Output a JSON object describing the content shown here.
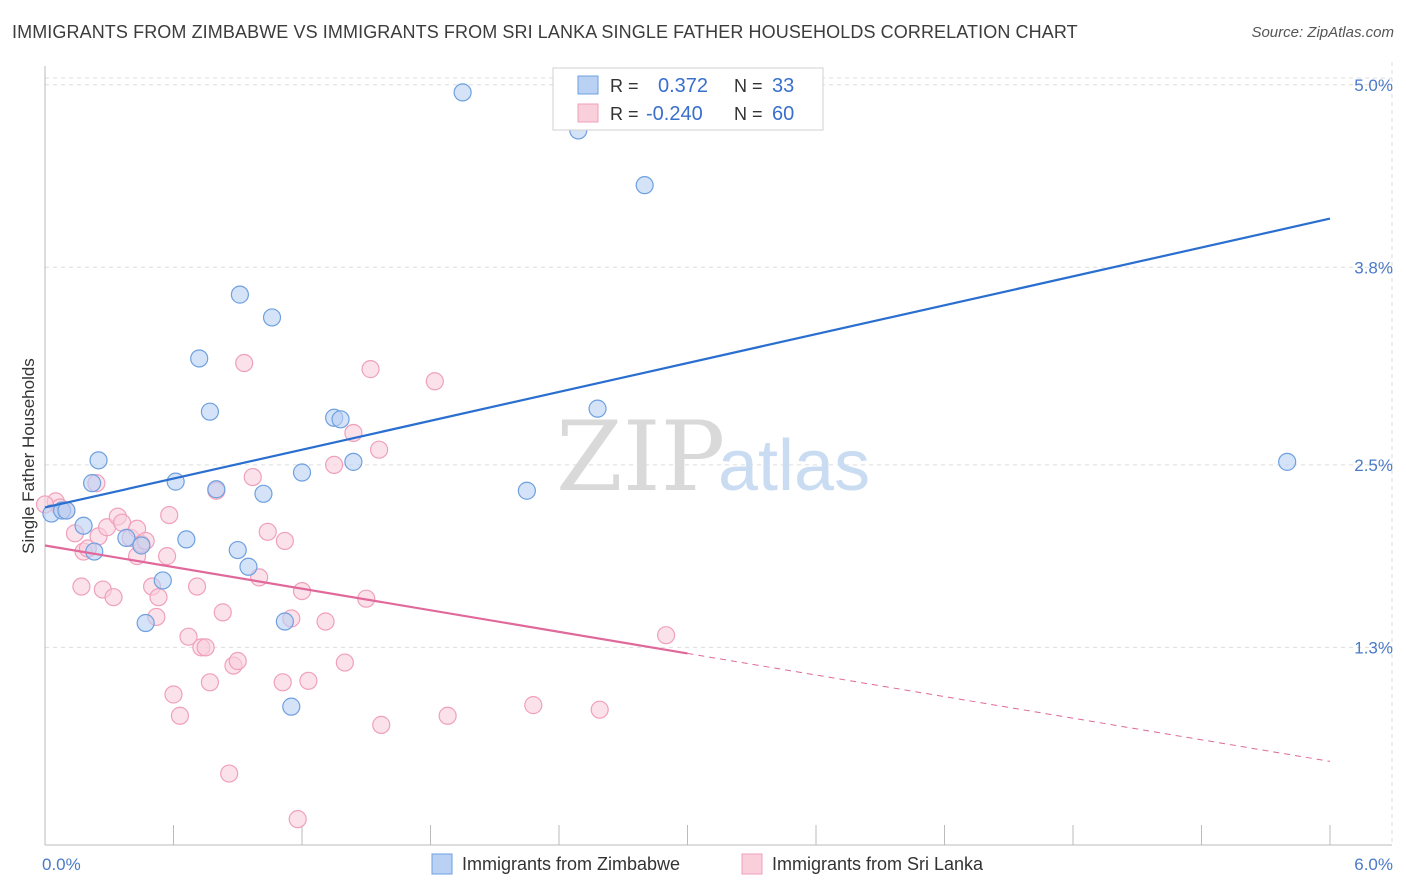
{
  "chart_data": {
    "type": "scatter",
    "title": "IMMIGRANTS FROM ZIMBABWE VS IMMIGRANTS FROM SRI LANKA SINGLE FATHER HOUSEHOLDS CORRELATION CHART",
    "source": "Source: ZipAtlas.com",
    "xlabel": "",
    "ylabel": "Single Father Households",
    "xlim": [
      0,
      6
    ],
    "ylim": [
      0,
      5.15
    ],
    "x_tick_labels": [
      "0.0%",
      "6.0%"
    ],
    "y_ticks": [
      1.3,
      2.5,
      3.8,
      5.0
    ],
    "y_tick_labels": [
      "1.3%",
      "2.5%",
      "3.8%",
      "5.0%"
    ],
    "watermark": {
      "zip": "ZIP",
      "atlas": "atlas"
    },
    "legend_box": {
      "r_label": "R =",
      "n_label": "N =",
      "rows": [
        {
          "r": "0.372",
          "n": "33"
        },
        {
          "r": "-0.240",
          "n": "60"
        }
      ]
    },
    "series": [
      {
        "name": "Immigrants from Zimbabwe",
        "color": "#6ea0e0",
        "fill": "#b9d1f3",
        "line_color": "#2a6fcf",
        "trend": {
          "x0": 0.0,
          "y0": 2.22,
          "x1": 6.0,
          "y1": 4.12
        },
        "points": [
          [
            0.03,
            2.18
          ],
          [
            0.08,
            2.2
          ],
          [
            0.1,
            2.2
          ],
          [
            0.18,
            2.1
          ],
          [
            0.23,
            1.93
          ],
          [
            0.25,
            2.53
          ],
          [
            0.22,
            2.38
          ],
          [
            0.38,
            2.02
          ],
          [
            0.45,
            1.97
          ],
          [
            0.55,
            1.74
          ],
          [
            0.47,
            1.46
          ],
          [
            0.61,
            2.39
          ],
          [
            0.66,
            2.01
          ],
          [
            0.72,
            3.2
          ],
          [
            0.77,
            2.85
          ],
          [
            0.8,
            2.34
          ],
          [
            0.9,
            1.94
          ],
          [
            0.91,
            3.62
          ],
          [
            0.95,
            1.83
          ],
          [
            1.02,
            2.31
          ],
          [
            1.06,
            3.47
          ],
          [
            1.12,
            1.47
          ],
          [
            1.15,
            0.91
          ],
          [
            1.2,
            2.45
          ],
          [
            1.35,
            2.81
          ],
          [
            1.38,
            2.8
          ],
          [
            1.44,
            2.52
          ],
          [
            1.95,
            4.95
          ],
          [
            2.25,
            2.33
          ],
          [
            2.49,
            4.7
          ],
          [
            2.58,
            2.87
          ],
          [
            2.8,
            4.34
          ],
          [
            5.8,
            2.52
          ]
        ]
      },
      {
        "name": "Immigrants from Sri Lanka",
        "color": "#f0a0bb",
        "fill": "#f9cfdc",
        "line_color": "#e0689a",
        "trend": {
          "x0": 0.0,
          "y0": 1.97,
          "x1": 3.0,
          "y1": 1.26
        },
        "trend_dashed": {
          "x0": 3.0,
          "y0": 1.26,
          "x1": 6.0,
          "y1": 0.55
        },
        "points": [
          [
            0.05,
            2.26
          ],
          [
            0.07,
            2.22
          ],
          [
            0.1,
            2.2
          ],
          [
            0.14,
            2.05
          ],
          [
            0.17,
            1.7
          ],
          [
            0.18,
            1.93
          ],
          [
            0.2,
            1.95
          ],
          [
            0.25,
            2.03
          ],
          [
            0.24,
            2.38
          ],
          [
            0.27,
            1.68
          ],
          [
            0.29,
            2.09
          ],
          [
            0.32,
            1.63
          ],
          [
            0.34,
            2.16
          ],
          [
            0.36,
            2.12
          ],
          [
            0.4,
            2.02
          ],
          [
            0.43,
            2.08
          ],
          [
            0.43,
            1.9
          ],
          [
            0.45,
            1.98
          ],
          [
            0.47,
            2.0
          ],
          [
            0.5,
            1.7
          ],
          [
            0.52,
            1.5
          ],
          [
            0.53,
            1.63
          ],
          [
            0.57,
            1.9
          ],
          [
            0.58,
            2.17
          ],
          [
            0.6,
            0.99
          ],
          [
            0.63,
            0.85
          ],
          [
            0.67,
            1.37
          ],
          [
            0.71,
            1.7
          ],
          [
            0.73,
            1.3
          ],
          [
            0.75,
            1.3
          ],
          [
            0.77,
            1.07
          ],
          [
            0.8,
            2.33
          ],
          [
            0.83,
            1.53
          ],
          [
            0.86,
            0.47
          ],
          [
            0.88,
            1.18
          ],
          [
            0.9,
            1.21
          ],
          [
            0.93,
            3.17
          ],
          [
            0.97,
            2.42
          ],
          [
            1.0,
            1.76
          ],
          [
            1.04,
            2.06
          ],
          [
            1.11,
            1.07
          ],
          [
            1.12,
            2.0
          ],
          [
            1.15,
            1.49
          ],
          [
            1.18,
            0.17
          ],
          [
            1.2,
            1.67
          ],
          [
            1.23,
            1.08
          ],
          [
            1.31,
            1.47
          ],
          [
            1.35,
            2.5
          ],
          [
            1.4,
            1.2
          ],
          [
            1.44,
            2.71
          ],
          [
            1.5,
            1.62
          ],
          [
            1.52,
            3.13
          ],
          [
            1.57,
            0.79
          ],
          [
            1.56,
            2.6
          ],
          [
            1.82,
            3.05
          ],
          [
            1.88,
            0.85
          ],
          [
            2.28,
            0.92
          ],
          [
            2.59,
            0.89
          ],
          [
            2.9,
            1.38
          ],
          [
            0.0,
            2.24
          ]
        ]
      }
    ]
  }
}
